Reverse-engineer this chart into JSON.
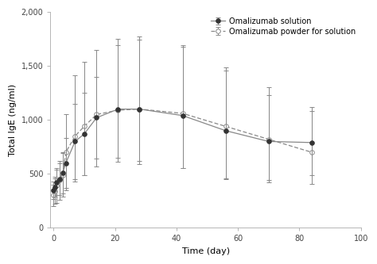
{
  "title": "",
  "xlabel": "Time (day)",
  "ylabel": "Total IgE (ng/ml)",
  "xlim": [
    -1,
    100
  ],
  "ylim": [
    0,
    2000
  ],
  "yticks": [
    0,
    500,
    1000,
    1500,
    2000
  ],
  "xticks": [
    0,
    20,
    40,
    60,
    80,
    100
  ],
  "legend1": "Omalizumab solution",
  "legend2": "Omalizumab powder for solution",
  "sol_x": [
    0,
    0.5,
    1,
    2,
    3,
    4,
    7,
    10,
    14,
    21,
    28,
    42,
    56,
    70,
    84
  ],
  "sol_y": [
    350,
    380,
    420,
    450,
    510,
    600,
    800,
    870,
    1020,
    1100,
    1100,
    1040,
    900,
    800,
    790
  ],
  "sol_err_lo": [
    80,
    90,
    120,
    150,
    190,
    230,
    350,
    380,
    380,
    450,
    480,
    490,
    450,
    380,
    300
  ],
  "sol_err_hi": [
    80,
    90,
    120,
    150,
    190,
    230,
    350,
    380,
    380,
    650,
    670,
    650,
    560,
    500,
    330
  ],
  "pow_x": [
    0,
    0.5,
    1,
    2,
    3,
    4,
    7,
    10,
    14,
    21,
    28,
    42,
    56,
    70,
    84
  ],
  "pow_y": [
    300,
    340,
    390,
    440,
    490,
    700,
    850,
    940,
    1050,
    1090,
    1100,
    1060,
    940,
    820,
    700
  ],
  "pow_err_lo": [
    100,
    120,
    160,
    180,
    200,
    350,
    420,
    450,
    480,
    480,
    510,
    510,
    480,
    380,
    290
  ],
  "pow_err_hi": [
    100,
    120,
    160,
    180,
    200,
    350,
    560,
    600,
    600,
    600,
    640,
    620,
    550,
    410,
    380
  ],
  "line_color": "#888888",
  "sol_marker_fc": "#333333",
  "sol_marker_ec": "#333333",
  "pow_marker_fc": "#ffffff",
  "pow_marker_ec": "#888888",
  "capsize": 2,
  "elinewidth": 0.7,
  "linewidth": 0.9,
  "markersize": 4,
  "tick_labelsize": 7,
  "label_fontsize": 8,
  "legend_fontsize": 7
}
